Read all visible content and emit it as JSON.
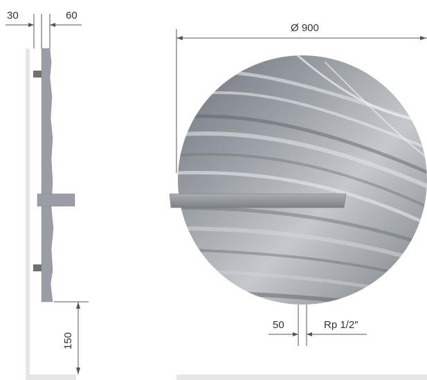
{
  "dimensions": {
    "side_offset_left": "30",
    "side_depth": "60",
    "floor_clearance": "150",
    "diameter": "Ø 900",
    "connection_spacing": "50",
    "connection_thread": "Rp 1/2″"
  },
  "colors": {
    "radiator_gray": "#9a9ea4",
    "wall_gray": "#e6e6e6",
    "bracket_gray": "#707070",
    "dimension_line": "#555555"
  }
}
